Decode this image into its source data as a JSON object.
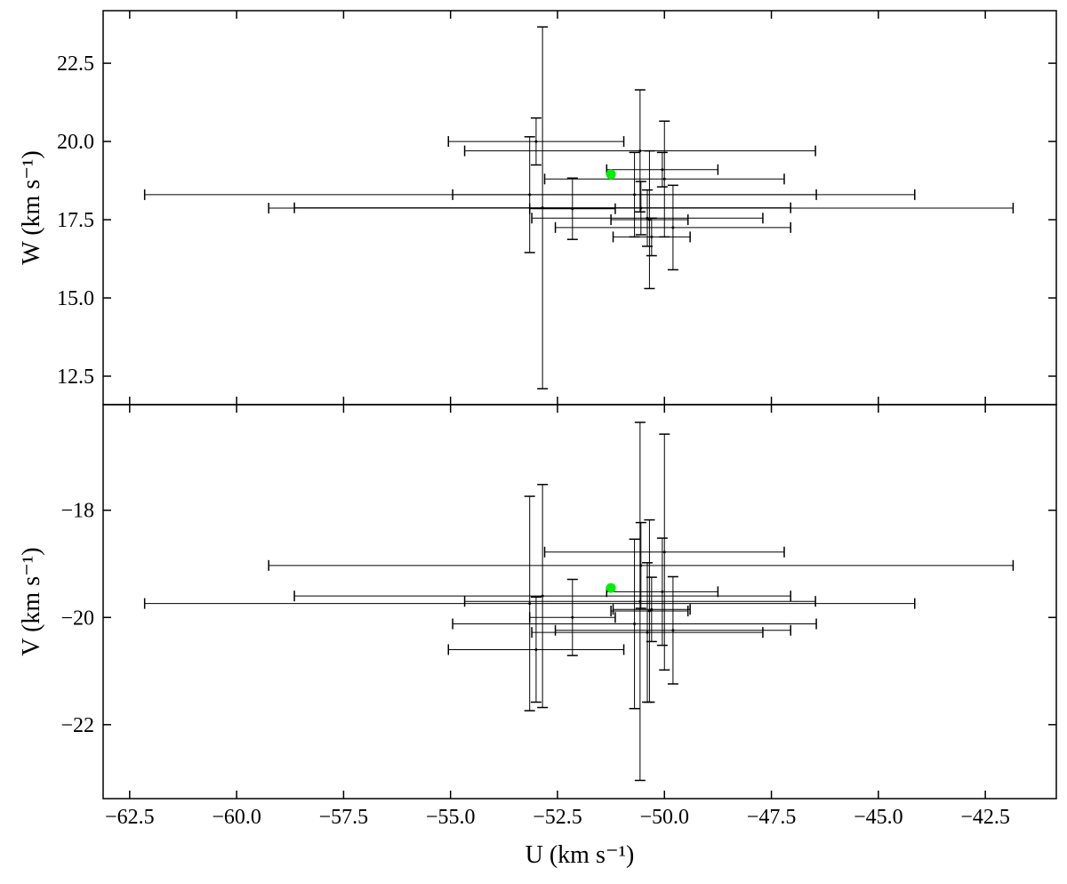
{
  "chart_data": [
    {
      "type": "scatter",
      "ylabel": "W (km s⁻¹)",
      "ylim": [
        11.59,
        24.18
      ],
      "yticks": [
        12.5,
        {
          "value": 15,
          "label": "15.0"
        },
        17.5,
        {
          "value": 20,
          "label": "20.0"
        },
        22.5
      ],
      "series": [
        {
          "color": "#000000",
          "x": [
            -52.85,
            -53.15,
            -53.0,
            -52.15,
            -50.05,
            -50.57,
            -50.0,
            -49.8,
            -50.35,
            -50.7,
            -50.4,
            -50.3,
            -50.55
          ],
          "y": [
            17.88,
            18.3,
            20.0,
            17.85,
            19.1,
            19.7,
            18.8,
            17.25,
            17.5,
            18.3,
            17.55,
            16.95,
            17.87
          ],
          "xerr": [
            5.8,
            9.0,
            2.05,
            1.0,
            1.3,
            4.1,
            2.8,
            2.75,
            0.9,
            4.25,
            2.7,
            0.9,
            8.7
          ],
          "yerr": [
            5.78,
            1.85,
            0.75,
            0.98,
            0.55,
            1.95,
            1.85,
            1.35,
            2.2,
            1.35,
            0.9,
            0.6,
            0.85
          ]
        },
        {
          "color": "#00ee00",
          "x": [
            -51.25
          ],
          "y": [
            18.95
          ]
        }
      ]
    },
    {
      "type": "scatter",
      "xlabel": "U (km s⁻¹)",
      "ylabel": "V (km s⁻¹)",
      "xlim": [
        -63.12,
        -40.84
      ],
      "xticks": [
        {
          "value": -62.5,
          "label": "−62.5"
        },
        {
          "value": -60,
          "label": "−60.0"
        },
        {
          "value": -57.5,
          "label": "−57.5"
        },
        {
          "value": -55,
          "label": "−55.0"
        },
        {
          "value": -52.5,
          "label": "−52.5"
        },
        {
          "value": -50,
          "label": "−50.0"
        },
        {
          "value": -47.5,
          "label": "−47.5"
        },
        {
          "value": -45,
          "label": "−45.0"
        },
        {
          "value": -42.5,
          "label": "−42.5"
        }
      ],
      "ylim": [
        -23.38,
        -16.03
      ],
      "yticks": [
        {
          "value": -22,
          "label": "−22"
        },
        {
          "value": -20,
          "label": "−20"
        },
        {
          "value": -18,
          "label": "−18"
        }
      ],
      "series": [
        {
          "color": "#000000",
          "x": [
            -52.85,
            -53.15,
            -53.0,
            -52.15,
            -50.05,
            -50.57,
            -50.0,
            -49.8,
            -50.35,
            -50.7,
            -50.4,
            -50.3,
            -50.55
          ],
          "y": [
            -19.6,
            -19.74,
            -20.6,
            -20.0,
            -19.52,
            -19.7,
            -18.78,
            -20.24,
            -19.88,
            -20.12,
            -20.28,
            -19.85,
            -19.03
          ],
          "xerr": [
            5.8,
            9.0,
            2.05,
            1.0,
            1.3,
            4.1,
            2.8,
            2.75,
            0.9,
            4.25,
            2.7,
            0.9,
            8.7
          ],
          "yerr": [
            2.08,
            2.0,
            0.98,
            0.71,
            1.0,
            3.34,
            2.2,
            1.0,
            1.7,
            1.58,
            1.3,
            0.6,
            0.8
          ]
        },
        {
          "color": "#00ee00",
          "x": [
            -51.25
          ],
          "y": [
            -19.45
          ]
        }
      ]
    }
  ]
}
